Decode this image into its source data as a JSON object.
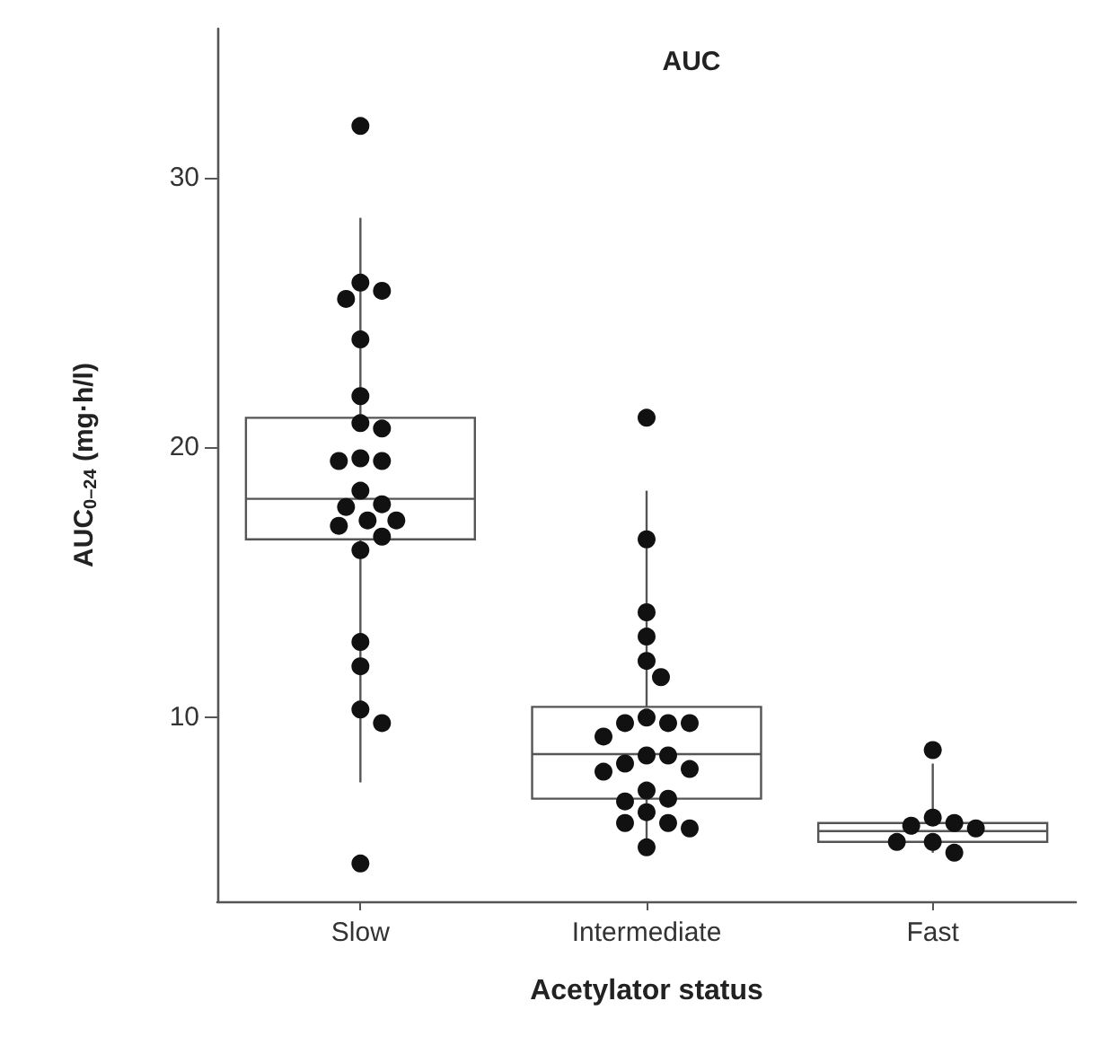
{
  "chart_data": {
    "type": "box",
    "title": "AUC",
    "xlabel": "Acetylator status",
    "ylabel": "AUC$_{0–24}$ (mg·h/l)",
    "categories": [
      "Slow",
      "Intermediate",
      "Fast"
    ],
    "boxes": [
      {
        "low": 7.6,
        "q1": 16.6,
        "median": 18.1,
        "q3": 21.1,
        "high": 28.5
      },
      {
        "low": 5.2,
        "q1": 7.0,
        "median": 8.65,
        "q3": 10.4,
        "high": 18.4
      },
      {
        "low": 5.0,
        "q1": 5.4,
        "median": 5.8,
        "q3": 6.1,
        "high": 8.3
      }
    ],
    "color": "#555555",
    "series": [
      {
        "type": "scatter",
        "color": "#111111",
        "x": [
          "Slow",
          "Slow",
          "Slow",
          "Slow",
          "Slow",
          "Slow",
          "Slow",
          "Slow",
          "Slow",
          "Slow",
          "Slow",
          "Slow",
          "Slow",
          "Slow",
          "Slow",
          "Slow",
          "Slow",
          "Slow",
          "Slow",
          "Slow",
          "Slow",
          "Slow",
          "Slow",
          "Slow",
          "Intermediate",
          "Intermediate",
          "Intermediate",
          "Intermediate",
          "Intermediate",
          "Intermediate",
          "Intermediate",
          "Intermediate",
          "Intermediate",
          "Intermediate",
          "Intermediate",
          "Intermediate",
          "Intermediate",
          "Intermediate",
          "Intermediate",
          "Intermediate",
          "Intermediate",
          "Intermediate",
          "Intermediate",
          "Intermediate",
          "Intermediate",
          "Intermediate",
          "Intermediate",
          "Intermediate",
          "Fast",
          "Fast",
          "Fast",
          "Fast",
          "Fast",
          "Fast",
          "Fast",
          "Fast"
        ],
        "values": [
          31.9,
          26.1,
          25.8,
          25.5,
          24.0,
          21.9,
          20.9,
          20.7,
          19.6,
          19.5,
          19.5,
          18.4,
          17.9,
          17.8,
          17.3,
          17.3,
          17.1,
          16.7,
          16.2,
          12.8,
          11.9,
          10.3,
          9.8,
          4.6,
          21.1,
          16.6,
          13.9,
          13.0,
          12.1,
          11.5,
          10.0,
          9.8,
          9.8,
          9.8,
          9.3,
          8.6,
          8.6,
          8.3,
          8.1,
          8.0,
          7.3,
          7.0,
          6.9,
          6.5,
          6.1,
          6.1,
          5.9,
          5.2,
          8.8,
          6.3,
          6.1,
          6.0,
          5.9,
          5.4,
          5.4,
          5.0
        ]
      }
    ],
    "ylim": [
      3.2,
      35.5
    ],
    "yticks": [
      10,
      20,
      30
    ],
    "marker": "circle"
  }
}
